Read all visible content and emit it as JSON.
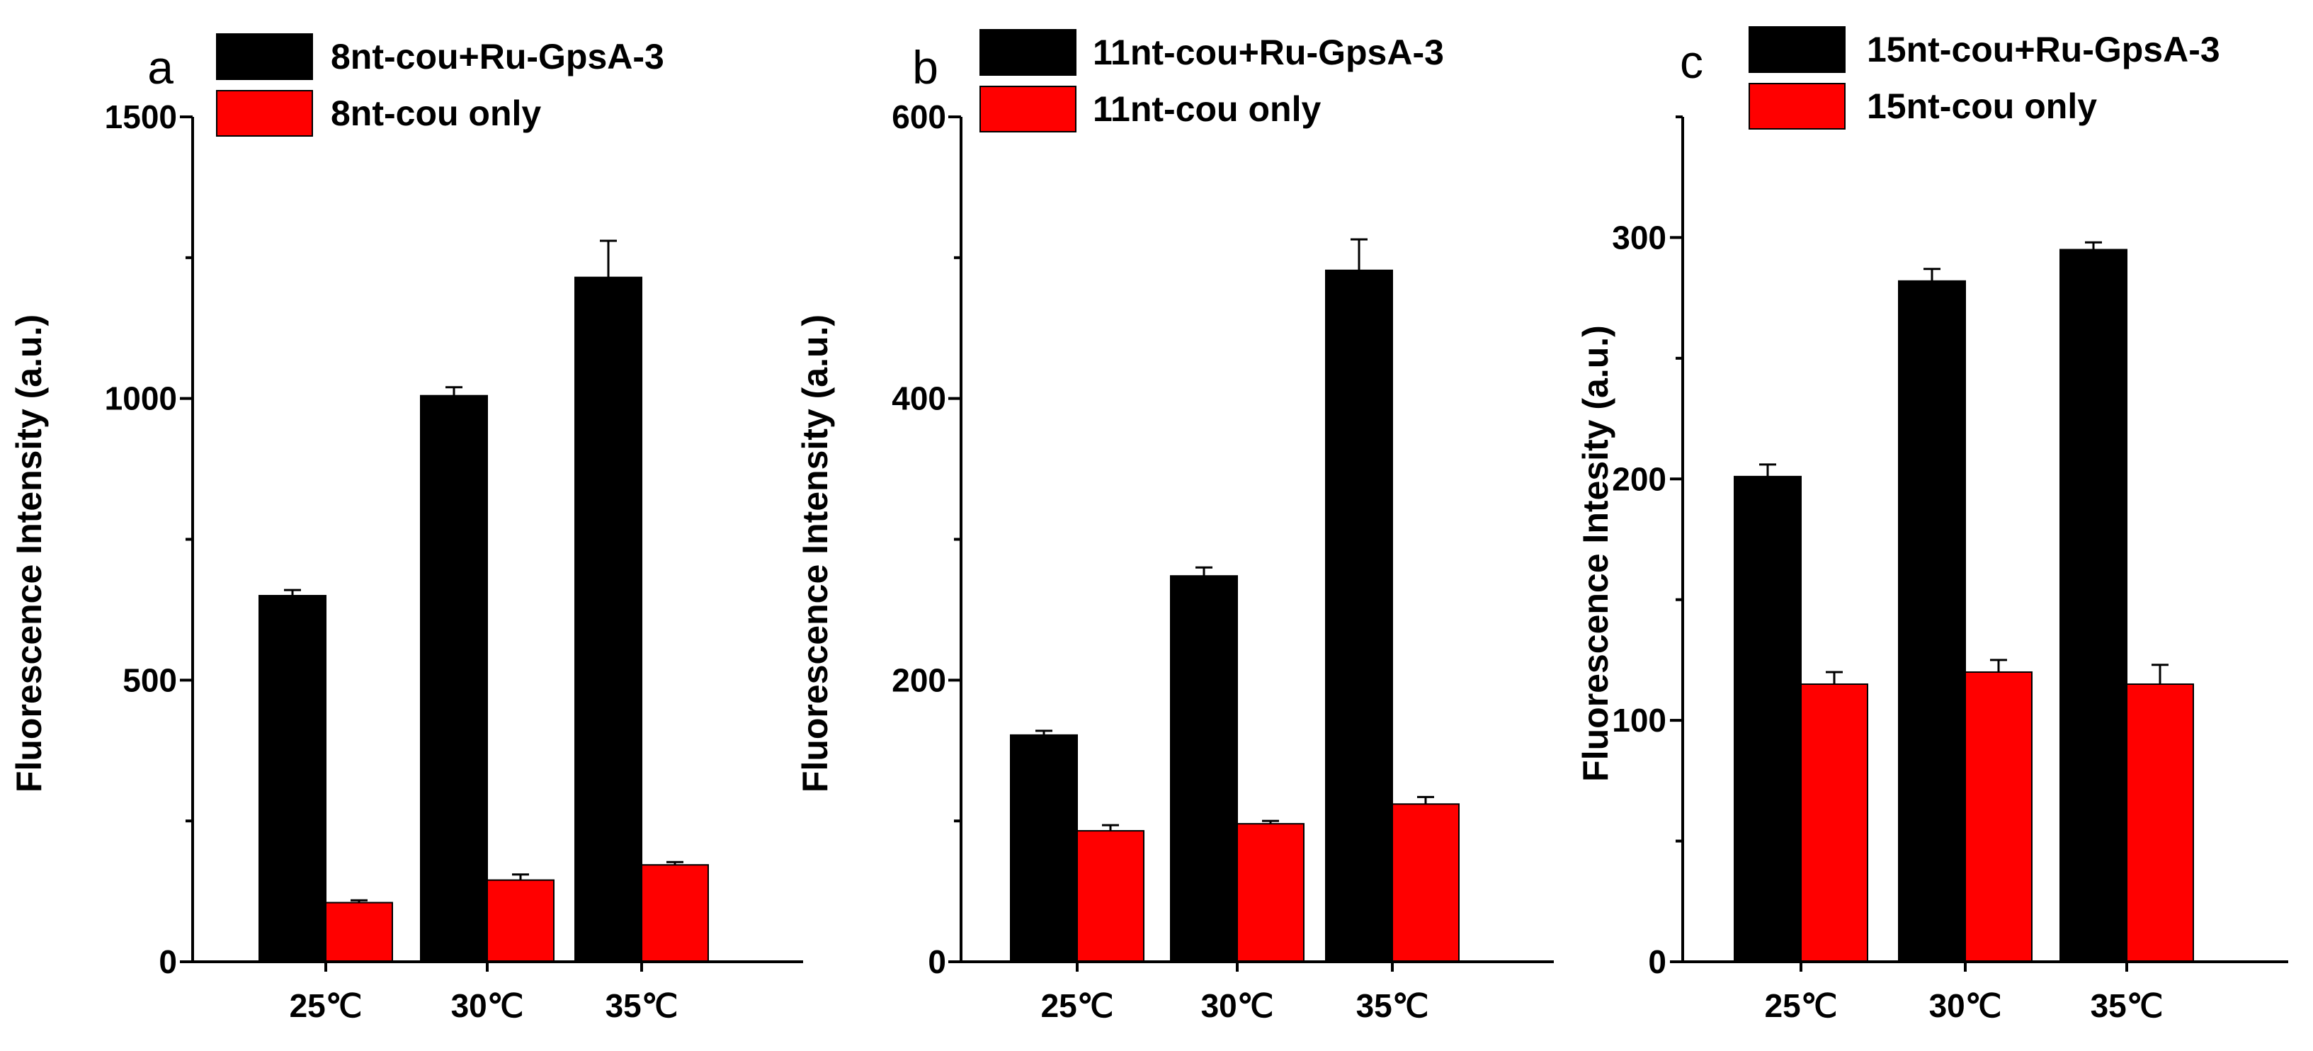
{
  "chart_data": [
    {
      "type": "bar",
      "panel_label": "a",
      "categories": [
        "25℃",
        "30℃",
        "35℃"
      ],
      "ylabel": "Fluorescence Intensity (a.u.)",
      "xlabel": "",
      "ylim": [
        0,
        1500
      ],
      "yticks": [
        0,
        500,
        1000,
        1500
      ],
      "yticks_labeled": [
        0,
        500,
        1000,
        1500
      ],
      "grid": false,
      "legend_position": "top",
      "series": [
        {
          "name": "8nt-cou+Ru-GpsA-3",
          "color": "#000000",
          "values": [
            650,
            1005,
            1215
          ],
          "errors": [
            10,
            15,
            65
          ]
        },
        {
          "name": "8nt-cou only",
          "color": "#ff0000",
          "values": [
            105,
            145,
            172
          ],
          "errors": [
            4,
            10,
            5
          ]
        }
      ]
    },
    {
      "type": "bar",
      "panel_label": "b",
      "categories": [
        "25℃",
        "30℃",
        "35℃"
      ],
      "ylabel": "Fluorescence Intensity (a.u.)",
      "xlabel": "",
      "ylim": [
        0,
        600
      ],
      "yticks": [
        0,
        200,
        400,
        600
      ],
      "yticks_labeled": [
        0,
        200,
        400,
        600
      ],
      "grid": false,
      "legend_position": "top",
      "series": [
        {
          "name": "11nt-cou+Ru-GpsA-3",
          "color": "#000000",
          "values": [
            161,
            274,
            491
          ],
          "errors": [
            3,
            6,
            22
          ]
        },
        {
          "name": "11nt-cou only",
          "color": "#ff0000",
          "values": [
            93,
            98,
            112
          ],
          "errors": [
            4,
            2,
            5
          ]
        }
      ]
    },
    {
      "type": "bar",
      "panel_label": "c",
      "categories": [
        "25℃",
        "30℃",
        "35℃"
      ],
      "ylabel": "Fluorescence Intesity (a.u.)",
      "xlabel": "",
      "ylim": [
        0,
        350
      ],
      "yticks": [
        0,
        100,
        200,
        300
      ],
      "yticks_labeled": [
        0,
        100,
        200,
        300
      ],
      "grid": false,
      "legend_position": "top",
      "series": [
        {
          "name": "15nt-cou+Ru-GpsA-3",
          "color": "#000000",
          "values": [
            201,
            282,
            295
          ],
          "errors": [
            5,
            5,
            3
          ]
        },
        {
          "name": "15nt-cou only",
          "color": "#ff0000",
          "values": [
            115,
            120,
            115
          ],
          "errors": [
            5,
            5,
            8
          ]
        }
      ]
    }
  ]
}
